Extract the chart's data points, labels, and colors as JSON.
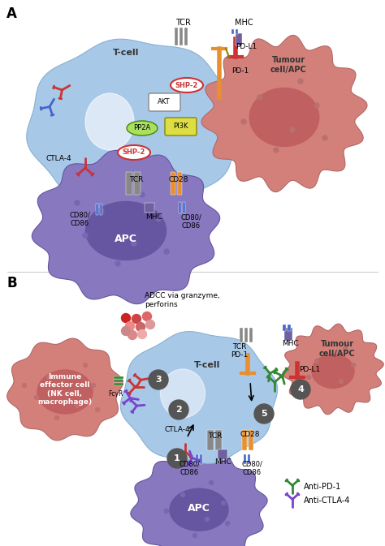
{
  "bg_color": "#ffffff",
  "panel_a_label": "A",
  "panel_b_label": "B",
  "tcell_color_a": "#a8c8e8",
  "tcell_color_b": "#a8c8e8",
  "apc_color": "#8878c0",
  "apc_nucleus_color": "#6655a0",
  "tumour_color": "#d4807a",
  "tumour_nucleus_color": "#c06060",
  "immune_effector_color": "#d4807a",
  "immune_effector_nucleus_color": "#c06060",
  "tcell_label": "T-cell",
  "apc_label": "APC",
  "tumour_label": "Tumour\ncell/APC",
  "immune_effector_label": "Immune\neffector cell\n(NK cell,\nmacrophage)",
  "ctla4_color": "#cc3333",
  "pd1_color": "#e89030",
  "pdl1_color": "#cc3333",
  "cd28_color": "#e89030",
  "tcr_color": "#808080",
  "mhc_color": "#6060a0",
  "cd80_color": "#4466cc",
  "shp2_color": "#cc3333",
  "akt_color": "#cccccc",
  "pp2a_color": "#88cc44",
  "pi3k_color": "#cccc44",
  "anti_pd1_color": "#338833",
  "anti_ctla4_color": "#7744cc",
  "fcyr_color": "#338833",
  "granzyme_colors": [
    "#cc2222",
    "#cc4444",
    "#dd6666",
    "#ee8888",
    "#cc6666",
    "#dd8888",
    "#eeaaaa",
    "#cc8888",
    "#dd9999"
  ],
  "text_color": "#333333",
  "number_circle_color": "#555555"
}
